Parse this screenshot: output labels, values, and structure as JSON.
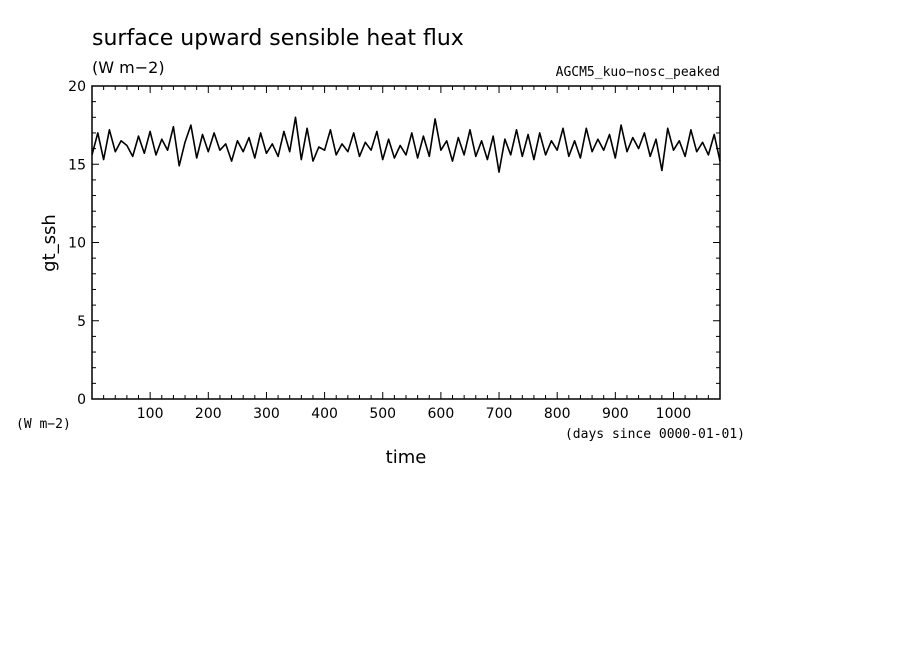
{
  "chart_data": {
    "type": "line",
    "title": "surface upward sensible heat flux",
    "subtitle": "(W m−2)",
    "experiment": "AGCM5_kuo−nosc_peaked",
    "xlabel": "time",
    "x_units": "(days since 0000-01-01)",
    "ylabel": "gt_ssh",
    "y_units": "(W m−2)",
    "xlim": [
      0,
      1080
    ],
    "ylim": [
      0,
      20
    ],
    "x_ticks": [
      100,
      200,
      300,
      400,
      500,
      600,
      700,
      800,
      900,
      1000
    ],
    "y_ticks": [
      0,
      5,
      10,
      15,
      20
    ],
    "grid": false,
    "series": [
      {
        "x": [
          0,
          10,
          20,
          30,
          40,
          50,
          60,
          70,
          80,
          90,
          100,
          110,
          120,
          130,
          140,
          150,
          160,
          170,
          180,
          190,
          200,
          210,
          220,
          230,
          240,
          250,
          260,
          270,
          280,
          290,
          300,
          310,
          320,
          330,
          340,
          350,
          360,
          370,
          380,
          390,
          400,
          410,
          420,
          430,
          440,
          450,
          460,
          470,
          480,
          490,
          500,
          510,
          520,
          530,
          540,
          550,
          560,
          570,
          580,
          590,
          600,
          610,
          620,
          630,
          640,
          650,
          660,
          670,
          680,
          690,
          700,
          710,
          720,
          730,
          740,
          750,
          760,
          770,
          780,
          790,
          800,
          810,
          820,
          830,
          840,
          850,
          860,
          870,
          880,
          890,
          900,
          910,
          920,
          930,
          940,
          950,
          960,
          970,
          980,
          990,
          1000,
          1010,
          1020,
          1030,
          1040,
          1050,
          1060,
          1070,
          1080
        ],
        "y": [
          15.6,
          17.0,
          15.3,
          17.2,
          15.8,
          16.5,
          16.2,
          15.5,
          16.8,
          15.7,
          17.1,
          15.6,
          16.6,
          15.9,
          17.4,
          14.9,
          16.4,
          17.5,
          15.4,
          16.9,
          15.8,
          17.0,
          15.9,
          16.3,
          15.2,
          16.5,
          15.8,
          16.7,
          15.4,
          17.0,
          15.7,
          16.3,
          15.5,
          17.1,
          15.8,
          18.0,
          15.3,
          17.3,
          15.2,
          16.1,
          15.9,
          17.2,
          15.6,
          16.3,
          15.8,
          17.0,
          15.5,
          16.4,
          15.9,
          17.1,
          15.3,
          16.6,
          15.4,
          16.2,
          15.6,
          17.0,
          15.4,
          16.8,
          15.5,
          17.9,
          15.9,
          16.5,
          15.2,
          16.7,
          15.6,
          17.2,
          15.5,
          16.5,
          15.3,
          16.8,
          14.5,
          16.6,
          15.6,
          17.2,
          15.5,
          16.9,
          15.3,
          17.0,
          15.6,
          16.5,
          15.9,
          17.3,
          15.5,
          16.5,
          15.4,
          17.3,
          15.8,
          16.6,
          15.9,
          16.9,
          15.4,
          17.5,
          15.8,
          16.7,
          16.0,
          17.0,
          15.5,
          16.6,
          14.6,
          17.3,
          15.9,
          16.5,
          15.5,
          17.2,
          15.8,
          16.4,
          15.6,
          16.9,
          15.2
        ]
      }
    ]
  }
}
